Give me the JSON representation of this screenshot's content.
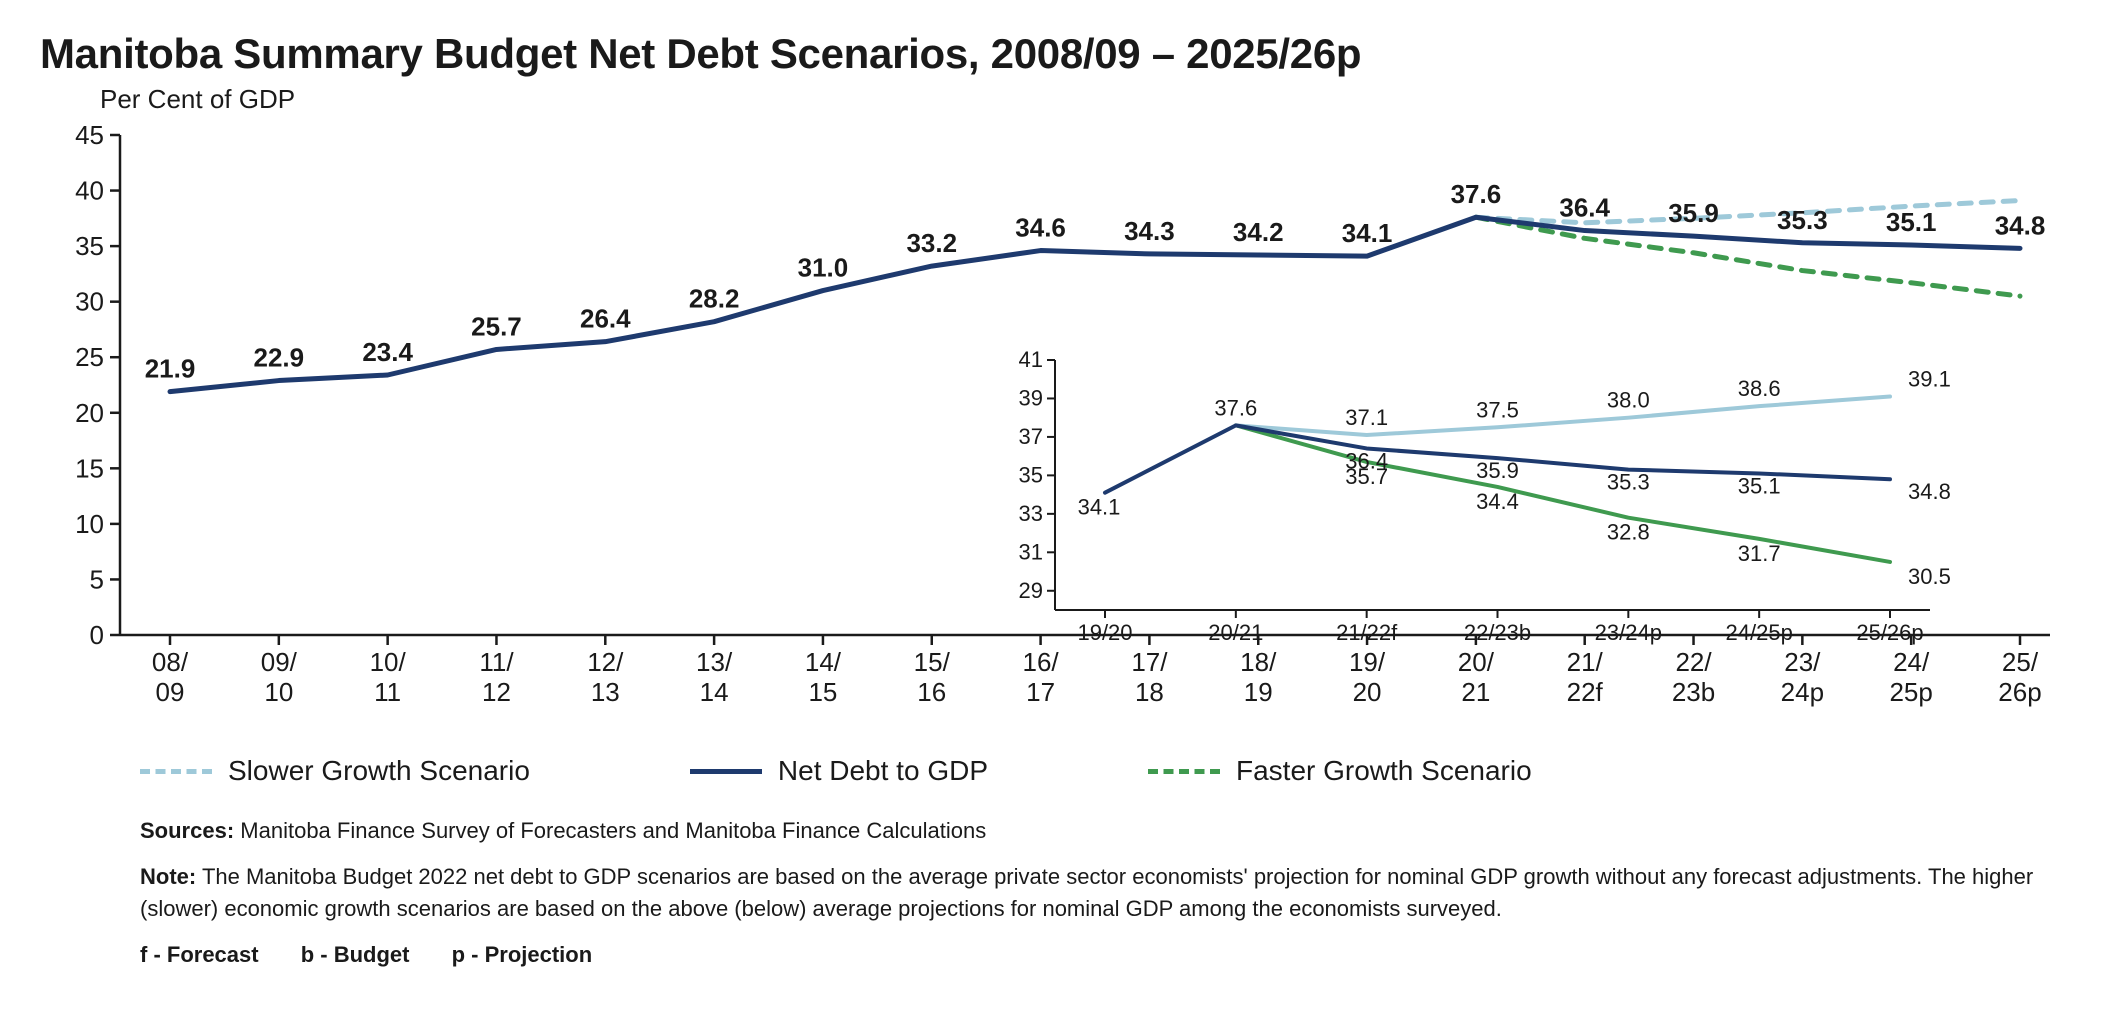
{
  "title": "Manitoba Summary Budget Net Debt Scenarios, 2008/09 – 2025/26p",
  "subtitle": "Per Cent of GDP",
  "main_chart": {
    "type": "line",
    "ylim": [
      0,
      45
    ],
    "ytick_step": 5,
    "yticks": [
      0,
      5,
      10,
      15,
      20,
      25,
      30,
      35,
      40,
      45
    ],
    "x_labels_top": [
      "08/",
      "09/",
      "10/",
      "11/",
      "12/",
      "13/",
      "14/",
      "15/",
      "16/",
      "17/",
      "18/",
      "19/",
      "20/",
      "21/",
      "22/",
      "23/",
      "24/",
      "25/"
    ],
    "x_labels_bottom": [
      "09",
      "10",
      "11",
      "12",
      "13",
      "14",
      "15",
      "16",
      "17",
      "18",
      "19",
      "20",
      "21",
      "22f",
      "23b",
      "24p",
      "25p",
      "26p"
    ],
    "series": {
      "net_debt": {
        "label": "Net Debt to GDP",
        "color": "#1e3a6e",
        "dash": "none",
        "width": 5,
        "values": [
          21.9,
          22.9,
          23.4,
          25.7,
          26.4,
          28.2,
          31.0,
          33.2,
          34.6,
          34.3,
          34.2,
          34.1,
          37.6,
          36.4,
          35.9,
          35.3,
          35.1,
          34.8
        ],
        "data_labels": [
          "21.9",
          "22.9",
          "23.4",
          "25.7",
          "26.4",
          "28.2",
          "31.0",
          "33.2",
          "34.6",
          "34.3",
          "34.2",
          "34.1",
          "37.6",
          "36.4",
          "35.9",
          "35.3",
          "35.1",
          "34.8"
        ]
      },
      "slower": {
        "label": "Slower Growth Scenario",
        "color": "#9ec9d9",
        "dash": "12 10",
        "width": 5,
        "start_index": 12,
        "values": [
          37.6,
          37.1,
          37.5,
          38.0,
          38.6,
          39.1
        ]
      },
      "faster": {
        "label": "Faster Growth Scenario",
        "color": "#3f9a4f",
        "dash": "12 10",
        "width": 5,
        "start_index": 12,
        "values": [
          37.6,
          35.7,
          34.4,
          32.8,
          31.7,
          30.5
        ]
      }
    },
    "background_color": "#ffffff",
    "axis_color": "#1a1a1a",
    "tick_length": 10,
    "label_fontsize": 26
  },
  "inset_chart": {
    "type": "line",
    "ylim": [
      28,
      41
    ],
    "yticks": [
      29,
      31,
      33,
      35,
      37,
      39,
      41
    ],
    "x_labels": [
      "19/20",
      "20/21",
      "21/22f",
      "22/23b",
      "23/24p",
      "24/25p",
      "25/26p"
    ],
    "series": {
      "net_debt": {
        "color": "#1e3a6e",
        "dash": "none",
        "width": 4,
        "values": [
          34.1,
          37.6,
          36.4,
          35.9,
          35.3,
          35.1,
          34.8
        ],
        "labels": [
          "34.1",
          "37.6",
          "36.4",
          "35.9",
          "35.3",
          "35.1",
          "34.8"
        ]
      },
      "slower": {
        "color": "#9ec9d9",
        "dash": "none",
        "width": 4,
        "start_index": 1,
        "values": [
          37.6,
          37.1,
          37.5,
          38.0,
          38.6,
          39.1
        ],
        "labels": [
          "",
          "37.1",
          "37.5",
          "38.0",
          "38.6",
          "39.1"
        ]
      },
      "faster": {
        "color": "#3f9a4f",
        "dash": "none",
        "width": 4,
        "start_index": 1,
        "values": [
          37.6,
          35.7,
          34.4,
          32.8,
          31.7,
          30.5
        ],
        "labels": [
          "",
          "35.7",
          "34.4",
          "32.8",
          "31.7",
          "30.5"
        ]
      }
    },
    "axis_color": "#1a1a1a"
  },
  "legend": {
    "slower": "Slower Growth Scenario",
    "net_debt": "Net Debt to GDP",
    "faster": "Faster Growth Scenario"
  },
  "footnotes": {
    "sources_label": "Sources:",
    "sources_text": "Manitoba Finance Survey of Forecasters and Manitoba Finance Calculations",
    "note_label": "Note:",
    "note_text": "The Manitoba Budget 2022 net debt to GDP scenarios are based on the average private sector economists' projection for nominal GDP growth without any forecast adjustments. The higher (slower) economic growth scenarios are based on the above (below) average projections for nominal GDP among the economists surveyed.",
    "defs": {
      "f": "f - Forecast",
      "b": "b - Budget",
      "p": "p - Projection"
    }
  }
}
